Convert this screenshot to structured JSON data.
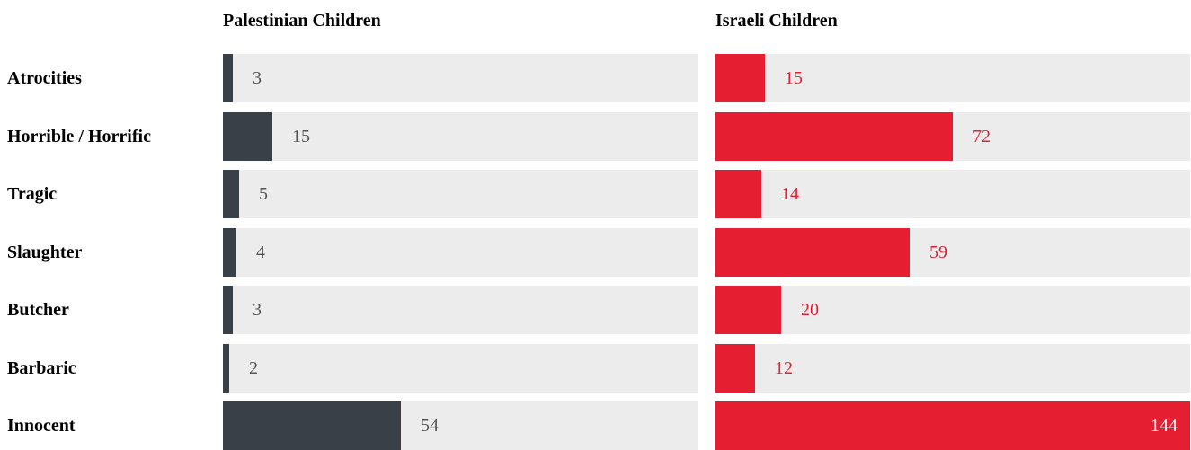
{
  "chart_data": {
    "type": "bar",
    "orientation": "horizontal",
    "categories": [
      "Atrocities",
      "Horrible / Horrific",
      "Tragic",
      "Slaughter",
      "Butcher",
      "Barbaric",
      "Innocent"
    ],
    "series": [
      {
        "name": "Palestinian Children",
        "values": [
          3,
          15,
          5,
          4,
          3,
          2,
          54
        ],
        "color": "#3a4048",
        "label_color": "#555555"
      },
      {
        "name": "Israeli Children",
        "values": [
          15,
          72,
          14,
          59,
          20,
          12,
          144
        ],
        "color": "#e61e32",
        "label_color": "#e61e32"
      }
    ],
    "track_color": "#ececec",
    "grid": false,
    "legend": "none",
    "xlim": [
      0,
      144
    ]
  }
}
